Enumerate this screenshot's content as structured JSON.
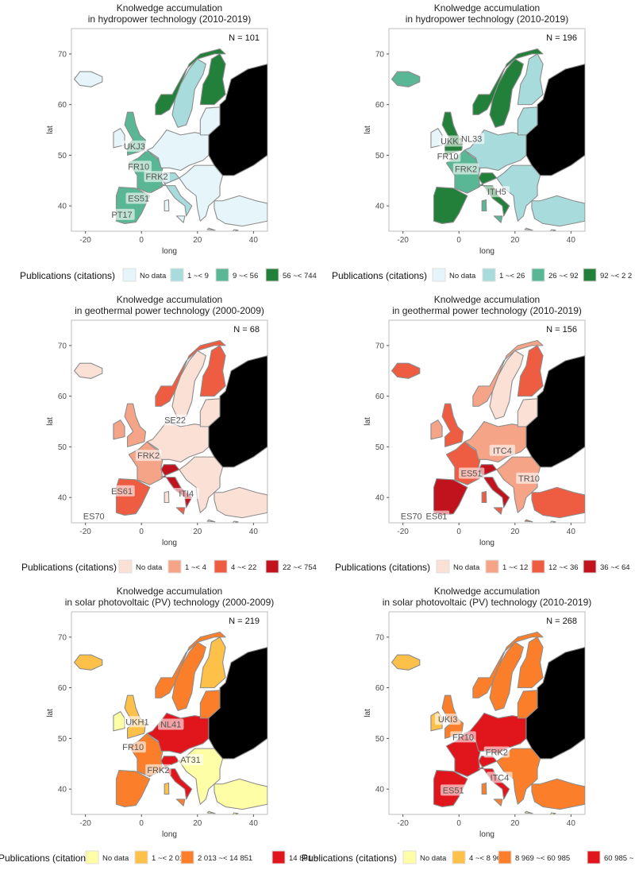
{
  "axis": {
    "x_label": "long",
    "y_label": "lat",
    "x_ticks": [
      "-20",
      "0",
      "20",
      "40"
    ],
    "y_ticks": [
      "40",
      "50",
      "60",
      "70"
    ]
  },
  "legend_title": "Publications (citations)",
  "panels": [
    {
      "title_line1": "Knolwedge accumulation",
      "title_line2": "in hydropower technology (2010-2019)",
      "n_label": "N =  101",
      "palette": [
        "#e5f5f9",
        "#a8dcdc",
        "#5ab795",
        "#22803a"
      ],
      "legend": [
        "No data",
        "1 ~< 9",
        "9 ~< 56",
        "56 ~< 744"
      ],
      "region_labels": [
        {
          "text": "UKJ3",
          "lon": -2.5,
          "lat": 51.5
        },
        {
          "text": "FR10",
          "lon": -1.0,
          "lat": 47.5
        },
        {
          "text": "FRK2",
          "lon": 5.5,
          "lat": 45.5
        },
        {
          "text": "ES51",
          "lon": -1.0,
          "lat": 41.2
        },
        {
          "text": "PT17",
          "lon": -7.0,
          "lat": 38.0
        }
      ]
    },
    {
      "title_line1": "Knolwedge accumulation",
      "title_line2": "in hydropower technology (2010-2019)",
      "n_label": "N =  196",
      "palette": [
        "#e5f5f9",
        "#a8dcdc",
        "#5ab795",
        "#22803a"
      ],
      "legend": [
        "No data",
        "1 ~< 26",
        "26 ~< 92",
        "92 ~< 2 2"
      ],
      "region_labels": [
        {
          "text": "UKK1",
          "lon": -2.5,
          "lat": 52.5
        },
        {
          "text": "NL33",
          "lon": 4.5,
          "lat": 53.0
        },
        {
          "text": "FR10",
          "lon": -4.0,
          "lat": 49.5
        },
        {
          "text": "FRK2",
          "lon": 2.5,
          "lat": 47.0
        },
        {
          "text": "ITH5",
          "lon": 13.5,
          "lat": 42.5
        }
      ]
    },
    {
      "title_line1": "Knolwedge accumulation",
      "title_line2": "in geothermal power technology (2000-2009)",
      "n_label": "N =  68",
      "palette": [
        "#fbe0d6",
        "#f6a487",
        "#ee5c42",
        "#c0131d"
      ],
      "legend": [
        "No data",
        "1 ~< 4",
        "4 ~< 22",
        "22 ~< 754"
      ],
      "region_labels": [
        {
          "text": "SE22",
          "lon": 12.0,
          "lat": 55.0
        },
        {
          "text": "FRK2",
          "lon": 2.5,
          "lat": 48.0
        },
        {
          "text": "ES61",
          "lon": -7.0,
          "lat": 41.0
        },
        {
          "text": "ITI4",
          "lon": 16.0,
          "lat": 40.5
        },
        {
          "text": "ES70",
          "lon": -17.0,
          "lat": 36.0
        }
      ]
    },
    {
      "title_line1": "Knolwedge accumulation",
      "title_line2": "in geothermal power technology (2010-2019)",
      "n_label": "N =  156",
      "palette": [
        "#fbe0d6",
        "#f6a487",
        "#ee5c42",
        "#c0131d"
      ],
      "legend": [
        "No data",
        "1 ~< 12",
        "12 ~< 36",
        "36 ~< 64"
      ],
      "region_labels": [
        {
          "text": "ITC4",
          "lon": 15.5,
          "lat": 49.0
        },
        {
          "text": "ES51",
          "lon": 4.5,
          "lat": 44.5
        },
        {
          "text": "TR10",
          "lon": 25.0,
          "lat": 43.5
        },
        {
          "text": "ES70",
          "lon": -17.0,
          "lat": 36.0
        },
        {
          "text": "ES61",
          "lon": -8.0,
          "lat": 36.0
        }
      ]
    },
    {
      "title_line1": "Knolwedge accumulation",
      "title_line2": "in solar photovoltaic (PV) technology (2000-2009)",
      "n_label": "N =  219",
      "palette": [
        "#fefea6",
        "#fdc049",
        "#fb7f2b",
        "#e1161c"
      ],
      "legend": [
        "No data",
        "1 ~< 2 013",
        "2 013 ~< 14 851",
        "14 851 ~"
      ],
      "region_labels": [
        {
          "text": "UKH1",
          "lon": -1.5,
          "lat": 53.0
        },
        {
          "text": "NL41",
          "lon": 10.5,
          "lat": 52.5
        },
        {
          "text": "FR10",
          "lon": -3.0,
          "lat": 48.0
        },
        {
          "text": "AT31",
          "lon": 17.5,
          "lat": 45.5
        },
        {
          "text": "FRK2",
          "lon": 6.0,
          "lat": 43.5
        }
      ]
    },
    {
      "title_line1": "Knolwedge accumulation",
      "title_line2": "in solar photovoltaic (PV) technology (2010-2019)",
      "n_label": "N =  268",
      "palette": [
        "#fefea6",
        "#fdc049",
        "#fb7f2b",
        "#e1161c"
      ],
      "legend": [
        "No data",
        "4 ~< 8 969",
        "8 969 ~< 60 985",
        "60 985 ~"
      ],
      "region_labels": [
        {
          "text": "UKI3",
          "lon": -4.0,
          "lat": 53.5
        },
        {
          "text": "FR10",
          "lon": 1.5,
          "lat": 50.0
        },
        {
          "text": "FRK2",
          "lon": 13.5,
          "lat": 47.0
        },
        {
          "text": "ITC4",
          "lon": 14.5,
          "lat": 42.0
        },
        {
          "text": "ES51",
          "lon": -2.0,
          "lat": 39.5
        }
      ]
    }
  ]
}
